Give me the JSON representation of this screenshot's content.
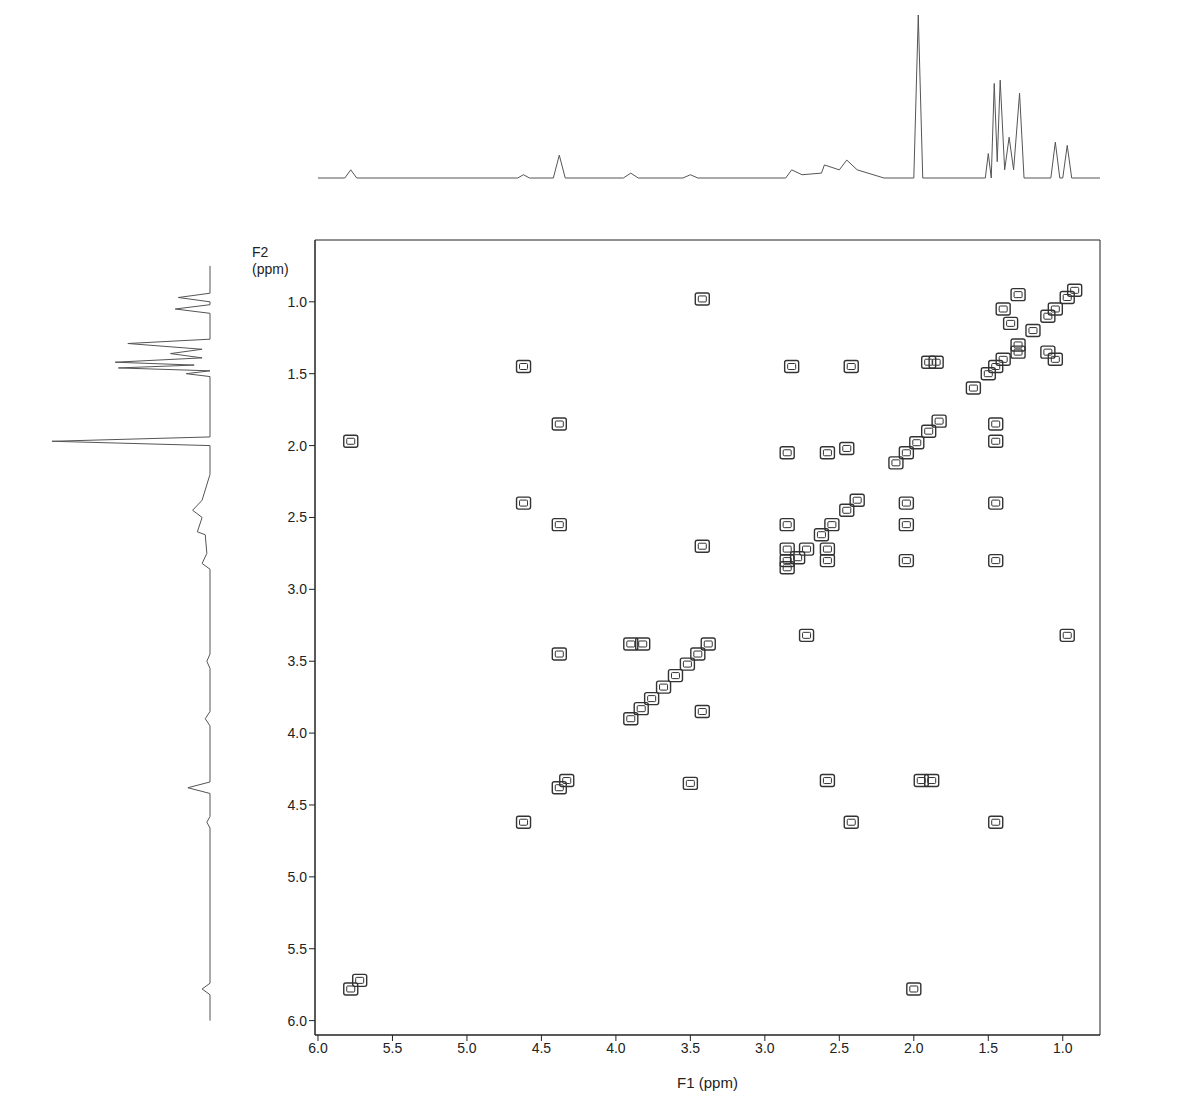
{
  "chart_data": {
    "type": "scatter",
    "x_label": "F1 (ppm)",
    "y_label": "F2 (ppm)",
    "xlim": [
      6.02,
      0.75
    ],
    "ylim": [
      6.1,
      0.57
    ],
    "xticks": [
      {
        "value": 6,
        "label": "6.0"
      },
      5.5,
      {
        "value": 5,
        "label": "5.0"
      },
      4.5,
      {
        "value": 4,
        "label": "4.0"
      },
      3.5,
      {
        "value": 3,
        "label": "3.0"
      },
      2.5,
      {
        "value": 2,
        "label": "2.0"
      },
      1.5,
      {
        "value": 1,
        "label": "1.0"
      }
    ],
    "yticks": [
      {
        "value": 1,
        "label": "1.0"
      },
      1.5,
      {
        "value": 2,
        "label": "2.0"
      },
      2.5,
      {
        "value": 3,
        "label": "3.0"
      },
      3.5,
      {
        "value": 4,
        "label": "4.0"
      },
      4.5,
      {
        "value": 5,
        "label": "5.0"
      },
      5.5,
      {
        "value": 6,
        "label": "6.0"
      }
    ],
    "grid": false,
    "color": "#333333",
    "marker": "square",
    "x": [
      5.78,
      5.72,
      4.62,
      4.38,
      4.33,
      3.9,
      3.83,
      3.76,
      3.68,
      3.6,
      3.52,
      3.45,
      3.38,
      2.85,
      2.78,
      2.72,
      2.62,
      2.55,
      2.45,
      2.38,
      2.12,
      2.05,
      1.98,
      1.9,
      1.83,
      1.6,
      1.5,
      1.45,
      1.4,
      1.3,
      1.2,
      1.1,
      1.05,
      0.97,
      0.92,
      3.42,
      4.62,
      2.82,
      2.42,
      1.9,
      1.85,
      4.38,
      1.45,
      1.45,
      5.78,
      2.85,
      2.58,
      2.45,
      4.62,
      2.05,
      1.45,
      4.38,
      2.85,
      2.05,
      3.42,
      2.85,
      2.58,
      2.85,
      2.58,
      2.05,
      1.45,
      2.72,
      3.9,
      3.82,
      0.97,
      4.38,
      3.42,
      3.5,
      2.58,
      1.95,
      1.88,
      2.42,
      1.45,
      2.0,
      1.05,
      1.4,
      1.3,
      1.3,
      1.1,
      1.35
    ],
    "values": [
      5.78,
      5.72,
      4.62,
      4.38,
      4.33,
      3.9,
      3.83,
      3.76,
      3.68,
      3.6,
      3.52,
      3.45,
      3.38,
      2.85,
      2.78,
      2.72,
      2.62,
      2.55,
      2.45,
      2.38,
      2.12,
      2.05,
      1.98,
      1.9,
      1.83,
      1.6,
      1.5,
      1.45,
      1.4,
      1.3,
      1.2,
      1.1,
      1.05,
      0.97,
      0.92,
      0.98,
      1.45,
      1.45,
      1.45,
      1.42,
      1.42,
      1.85,
      1.85,
      1.97,
      1.97,
      2.05,
      2.05,
      2.02,
      2.4,
      2.4,
      2.4,
      2.55,
      2.55,
      2.55,
      2.7,
      2.72,
      2.72,
      2.8,
      2.8,
      2.8,
      2.8,
      3.32,
      3.38,
      3.38,
      3.32,
      3.45,
      3.85,
      4.35,
      4.33,
      4.33,
      4.33,
      4.62,
      4.62,
      5.78,
      1.4,
      1.05,
      0.95,
      1.35,
      1.35,
      1.15
    ],
    "projection": {
      "type": "line",
      "color": "#555555",
      "x": [
        6.0,
        5.82,
        5.78,
        5.74,
        4.66,
        4.62,
        4.58,
        4.42,
        4.38,
        4.34,
        3.95,
        3.9,
        3.85,
        3.55,
        3.5,
        3.45,
        2.86,
        2.82,
        2.75,
        2.62,
        2.6,
        2.5,
        2.45,
        2.38,
        2.2,
        2.0,
        1.97,
        1.94,
        1.52,
        1.5,
        1.48,
        1.46,
        1.44,
        1.42,
        1.39,
        1.36,
        1.33,
        1.29,
        1.26,
        1.08,
        1.05,
        1.02,
        1.0,
        0.97,
        0.94,
        0.75
      ],
      "values": [
        0,
        0,
        0.05,
        0,
        0,
        0.02,
        0,
        0,
        0.14,
        0,
        0,
        0.03,
        0,
        0,
        0.02,
        0,
        0,
        0.05,
        0.02,
        0.03,
        0.08,
        0.05,
        0.11,
        0.05,
        0,
        0,
        1.0,
        0,
        0,
        0.15,
        0,
        0.58,
        0.1,
        0.6,
        0.05,
        0.25,
        0.05,
        0.52,
        0,
        0,
        0.22,
        0,
        0,
        0.2,
        0,
        0
      ]
    }
  }
}
